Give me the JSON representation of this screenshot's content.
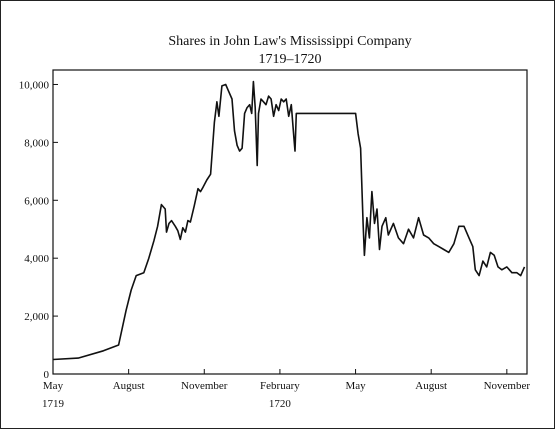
{
  "chart_data": {
    "type": "line",
    "title": "Shares in John Law's Mississippi Company",
    "subtitle": "1719–1720",
    "xlabel": "",
    "ylabel": "",
    "ylim": [
      0,
      10500
    ],
    "yticks": [
      0,
      2000,
      4000,
      6000,
      8000,
      10000
    ],
    "ytick_labels": [
      "0",
      "2,000",
      "4,000",
      "6,000",
      "8,000",
      "10,000"
    ],
    "xlim": [
      0,
      18.8
    ],
    "x_unit": "months since May 1719",
    "xticks": [
      {
        "x": 0,
        "label": "May",
        "year": "1719"
      },
      {
        "x": 3,
        "label": "August",
        "year": ""
      },
      {
        "x": 6,
        "label": "November",
        "year": ""
      },
      {
        "x": 9,
        "label": "February",
        "year": "1720"
      },
      {
        "x": 12,
        "label": "May",
        "year": ""
      },
      {
        "x": 15,
        "label": "August",
        "year": ""
      },
      {
        "x": 18,
        "label": "November",
        "year": ""
      }
    ],
    "grid": false,
    "line_color": "#111111",
    "series": [
      {
        "name": "",
        "points": [
          [
            0.0,
            500
          ],
          [
            1.0,
            550
          ],
          [
            2.0,
            800
          ],
          [
            2.6,
            1000
          ],
          [
            2.9,
            2200
          ],
          [
            3.1,
            2900
          ],
          [
            3.3,
            3400
          ],
          [
            3.6,
            3500
          ],
          [
            3.8,
            4000
          ],
          [
            4.0,
            4600
          ],
          [
            4.15,
            5100
          ],
          [
            4.3,
            5850
          ],
          [
            4.45,
            5700
          ],
          [
            4.5,
            4900
          ],
          [
            4.6,
            5200
          ],
          [
            4.7,
            5300
          ],
          [
            4.85,
            5100
          ],
          [
            4.95,
            4950
          ],
          [
            5.05,
            4650
          ],
          [
            5.15,
            5050
          ],
          [
            5.25,
            4900
          ],
          [
            5.35,
            5300
          ],
          [
            5.45,
            5250
          ],
          [
            5.6,
            5800
          ],
          [
            5.75,
            6400
          ],
          [
            5.85,
            6300
          ],
          [
            5.95,
            6450
          ],
          [
            6.1,
            6700
          ],
          [
            6.25,
            6900
          ],
          [
            6.4,
            8700
          ],
          [
            6.5,
            9400
          ],
          [
            6.58,
            8900
          ],
          [
            6.7,
            9950
          ],
          [
            6.85,
            10000
          ],
          [
            6.95,
            9800
          ],
          [
            7.1,
            9500
          ],
          [
            7.2,
            8400
          ],
          [
            7.3,
            7900
          ],
          [
            7.4,
            7700
          ],
          [
            7.5,
            7800
          ],
          [
            7.6,
            9000
          ],
          [
            7.7,
            9200
          ],
          [
            7.8,
            9300
          ],
          [
            7.88,
            9000
          ],
          [
            7.95,
            10100
          ],
          [
            8.02,
            9200
          ],
          [
            8.1,
            7200
          ],
          [
            8.15,
            9000
          ],
          [
            8.25,
            9500
          ],
          [
            8.35,
            9400
          ],
          [
            8.45,
            9300
          ],
          [
            8.55,
            9600
          ],
          [
            8.65,
            9500
          ],
          [
            8.75,
            8900
          ],
          [
            8.85,
            9300
          ],
          [
            8.95,
            9100
          ],
          [
            9.05,
            9500
          ],
          [
            9.15,
            9400
          ],
          [
            9.25,
            9500
          ],
          [
            9.35,
            8900
          ],
          [
            9.45,
            9300
          ],
          [
            9.55,
            8200
          ],
          [
            9.6,
            7700
          ],
          [
            9.65,
            9000
          ],
          [
            12.0,
            9000
          ],
          [
            12.1,
            8300
          ],
          [
            12.2,
            7800
          ],
          [
            12.3,
            5200
          ],
          [
            12.35,
            4100
          ],
          [
            12.45,
            5400
          ],
          [
            12.55,
            4700
          ],
          [
            12.65,
            6300
          ],
          [
            12.75,
            5200
          ],
          [
            12.85,
            5700
          ],
          [
            12.95,
            4300
          ],
          [
            13.05,
            5100
          ],
          [
            13.2,
            5400
          ],
          [
            13.3,
            4800
          ],
          [
            13.5,
            5200
          ],
          [
            13.7,
            4700
          ],
          [
            13.9,
            4500
          ],
          [
            14.1,
            5000
          ],
          [
            14.3,
            4700
          ],
          [
            14.5,
            5400
          ],
          [
            14.7,
            4800
          ],
          [
            14.9,
            4700
          ],
          [
            15.1,
            4500
          ],
          [
            15.3,
            4400
          ],
          [
            15.5,
            4300
          ],
          [
            15.7,
            4200
          ],
          [
            15.9,
            4500
          ],
          [
            16.1,
            5100
          ],
          [
            16.3,
            5100
          ],
          [
            16.5,
            4700
          ],
          [
            16.65,
            4400
          ],
          [
            16.75,
            3600
          ],
          [
            16.9,
            3400
          ],
          [
            17.05,
            3900
          ],
          [
            17.2,
            3700
          ],
          [
            17.35,
            4200
          ],
          [
            17.5,
            4100
          ],
          [
            17.65,
            3700
          ],
          [
            17.8,
            3600
          ],
          [
            18.0,
            3700
          ],
          [
            18.2,
            3500
          ],
          [
            18.4,
            3500
          ],
          [
            18.55,
            3400
          ],
          [
            18.7,
            3700
          ]
        ]
      }
    ]
  }
}
